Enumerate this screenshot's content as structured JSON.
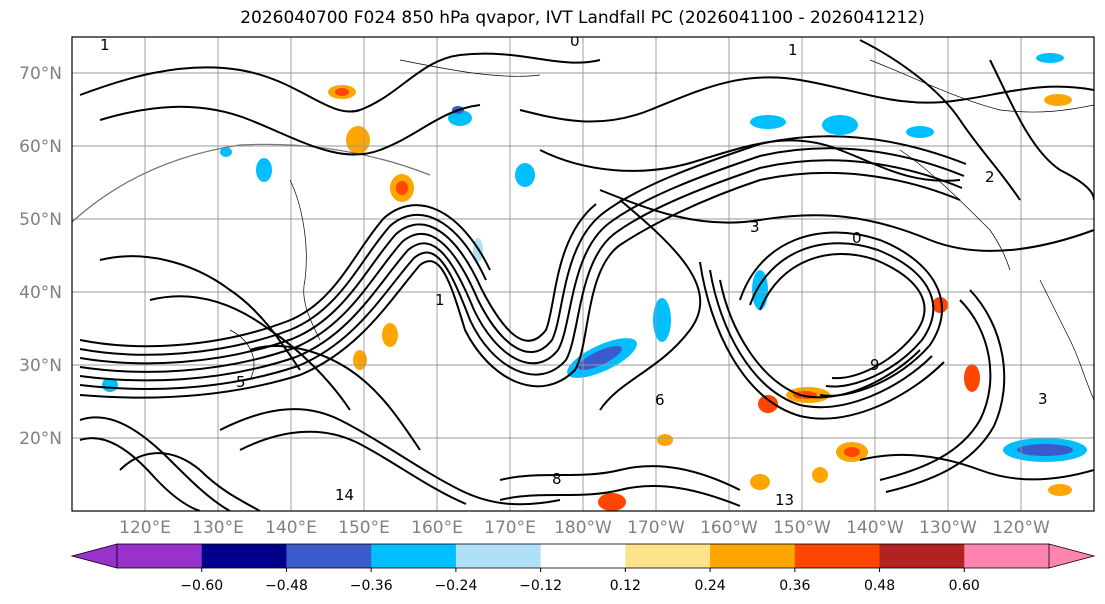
{
  "title": "2026040700 F024 850 hPa qvapor, IVT Landfall PC (2026041100 - 2026041212)",
  "lat_labels": [
    "70°N",
    "60°N",
    "50°N",
    "40°N",
    "30°N",
    "20°N"
  ],
  "lon_labels": [
    "120°E",
    "130°E",
    "140°E",
    "150°E",
    "160°E",
    "170°E",
    "180°W",
    "170°W",
    "160°W",
    "150°W",
    "140°W",
    "130°W",
    "120°W"
  ],
  "colorbar": {
    "colors": [
      "#9932cc",
      "#00008b",
      "#3a5bcc",
      "#00bfff",
      "#b0e0f8",
      "#ffffff",
      "#fce38a",
      "#ffa500",
      "#ff4500",
      "#b22222",
      "#ff85b0"
    ],
    "tick_labels": [
      "−0.60",
      "−0.48",
      "−0.36",
      "−0.24",
      "−0.12",
      "0.12",
      "0.24",
      "0.36",
      "0.48",
      "0.60"
    ]
  },
  "contour_labels": [
    "1",
    "0",
    "1",
    "2",
    "3",
    "5",
    "6",
    "8",
    "9",
    "13",
    "14",
    "1",
    "0",
    "3"
  ]
}
